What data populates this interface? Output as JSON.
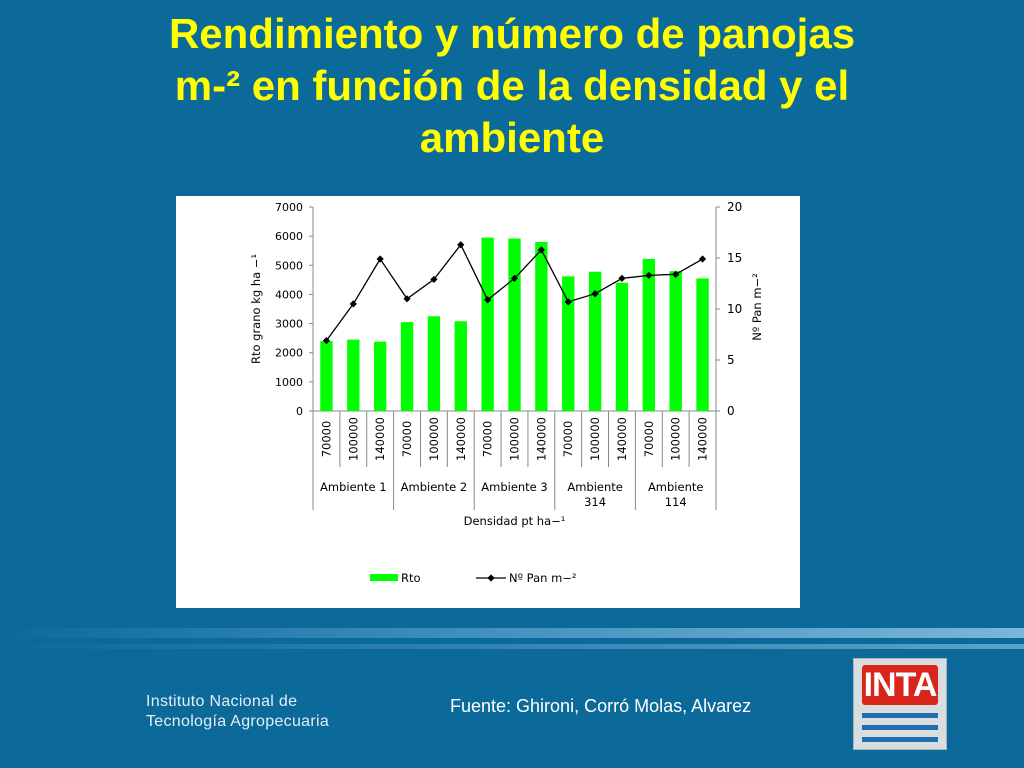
{
  "slide": {
    "title_line1": "Rendimiento y número de panojas",
    "title_line2": "m-² en función de la densidad y el",
    "title_line3": "ambiente",
    "source": "Fuente: Ghironi, Corró Molas, Alvarez",
    "institute_line1": "Instituto Nacional de",
    "institute_line2": "Tecnología Agropecuaria",
    "logo_text": "INTA",
    "colors": {
      "background": "#0b6a9a",
      "title": "#ffff00",
      "logo_red": "#d9261c",
      "logo_blue": "#1f6fb0"
    }
  },
  "chart_data": {
    "type": "bar",
    "categories": [
      "70000",
      "100000",
      "140000",
      "70000",
      "100000",
      "140000",
      "70000",
      "100000",
      "140000",
      "70000",
      "100000",
      "140000",
      "70000",
      "100000",
      "140000"
    ],
    "groups": [
      {
        "label": [
          "Ambiente 1"
        ],
        "size": 3
      },
      {
        "label": [
          "Ambiente 2"
        ],
        "size": 3
      },
      {
        "label": [
          "Ambiente 3"
        ],
        "size": 3
      },
      {
        "label": [
          "Ambiente",
          "314"
        ],
        "size": 3
      },
      {
        "label": [
          "Ambiente",
          "114"
        ],
        "size": 3
      }
    ],
    "series": [
      {
        "name": "Rto",
        "type": "bar",
        "axis": "left",
        "color": "#00ff00",
        "values": [
          2400,
          2450,
          2380,
          3050,
          3250,
          3080,
          5950,
          5920,
          5800,
          4620,
          4780,
          4400,
          5220,
          4800,
          4550
        ]
      },
      {
        "name": "Nº Pan m−²",
        "type": "line",
        "axis": "right",
        "color": "#000000",
        "marker": "diamond",
        "values": [
          6.9,
          10.5,
          14.9,
          11.0,
          12.9,
          16.3,
          10.9,
          13.0,
          15.8,
          10.7,
          11.5,
          13.0,
          13.3,
          13.4,
          14.9
        ]
      }
    ],
    "xlabel": "Densidad pt ha−¹",
    "ylabel": "Rto grano kg ha −¹",
    "y2label": "Nº  Pan m−²",
    "ylim": [
      0,
      7000
    ],
    "y2lim": [
      0,
      20
    ],
    "yticks": [
      "0",
      "1000",
      "2000",
      "3000",
      "4000",
      "5000",
      "6000",
      "7000"
    ],
    "y2ticks": [
      "0",
      "5",
      "10",
      "15",
      "20"
    ],
    "grid": false,
    "legend": "bottom"
  }
}
